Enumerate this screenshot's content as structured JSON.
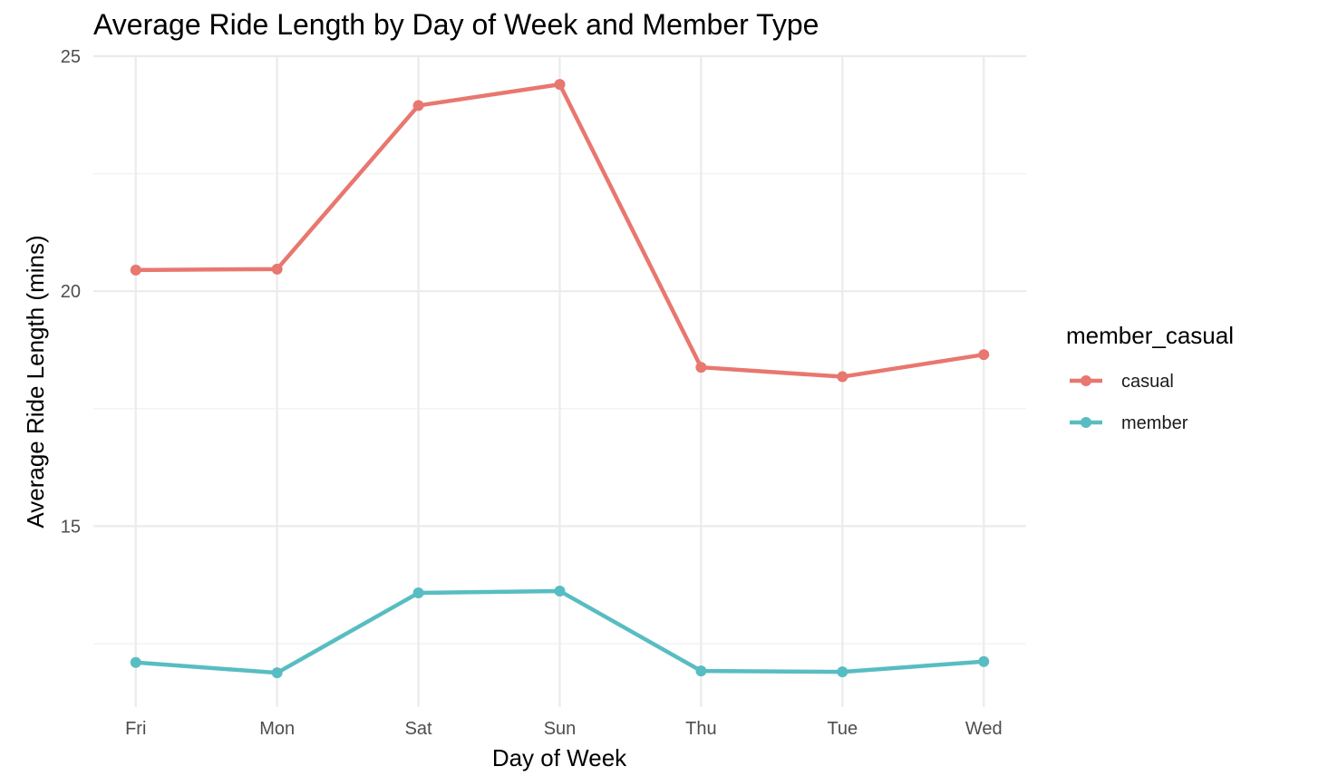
{
  "chart_data": {
    "type": "line",
    "title": "Average Ride Length by Day of Week and Member Type",
    "xlabel": "Day of Week",
    "ylabel": "Average Ride Length (mins)",
    "categories": [
      "Fri",
      "Mon",
      "Sat",
      "Sun",
      "Thu",
      "Tue",
      "Wed"
    ],
    "ylim": [
      11.15,
      25
    ],
    "y_ticks": [
      15,
      20,
      25
    ],
    "y_minor_ticks": [
      12.5,
      17.5,
      22.5
    ],
    "grid": true,
    "legend": {
      "title": "member_casual",
      "placement": "right"
    },
    "series": [
      {
        "name": "casual",
        "color": "#E8776F",
        "values": [
          20.45,
          20.47,
          23.95,
          24.4,
          18.38,
          18.18,
          18.65
        ]
      },
      {
        "name": "member",
        "color": "#58BDC2",
        "values": [
          12.1,
          11.88,
          13.58,
          13.62,
          11.92,
          11.9,
          12.12
        ]
      }
    ]
  }
}
